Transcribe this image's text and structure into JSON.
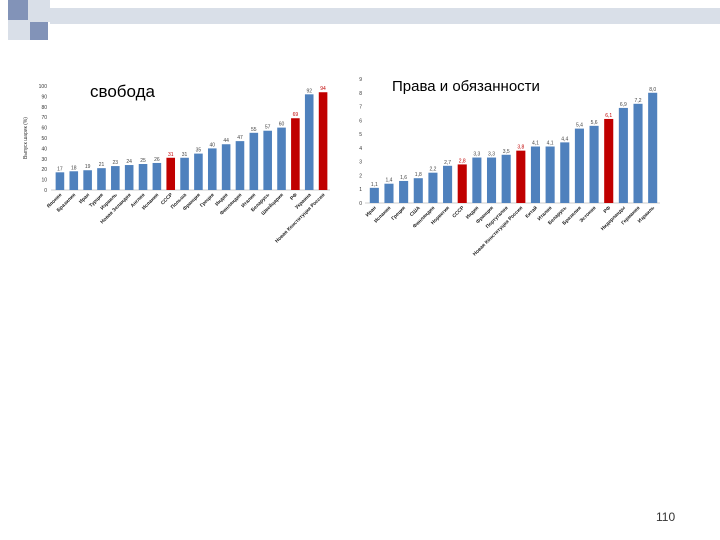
{
  "slide": {
    "page_number": "110",
    "colors": {
      "bar": "#4f81bd",
      "highlight": "#c00000",
      "header_light": "#d9dfe8",
      "header_dark": "#8293b8"
    }
  },
  "chart_data": [
    {
      "type": "bar",
      "title": "свобода",
      "ylabel": "Выпуск шарик (%)",
      "ylim": [
        0,
        100
      ],
      "yticks": [
        "0",
        "10",
        "20",
        "30",
        "40",
        "50",
        "60",
        "70",
        "80",
        "90",
        "100"
      ],
      "categories": [
        "Японие",
        "Бразилия",
        "Иран",
        "Турция",
        "Израиль",
        "Новая Зеландия",
        "Англия",
        "Испания",
        "СССР",
        "Польша",
        "Франция",
        "Греция",
        "Индия",
        "Финляндия",
        "Италия",
        "Беларусь",
        "Швейцария",
        "РФ",
        "Украина",
        "Новая Конституция России"
      ],
      "values": [
        17,
        18,
        19,
        21,
        23,
        24,
        25,
        26,
        31,
        31,
        35,
        40,
        44,
        47,
        55,
        57,
        60,
        69,
        92,
        94
      ],
      "value_labels": [
        "17",
        "18",
        "19",
        "21",
        "23",
        "24",
        "25",
        "26",
        "31",
        "31",
        "35",
        "40",
        "44",
        "47",
        "55",
        "57",
        "60",
        "69",
        "92",
        "94"
      ],
      "highlight": [
        8,
        17,
        19
      ]
    },
    {
      "type": "bar",
      "title": "Права и обязанности",
      "ylabel": "",
      "ylim": [
        0,
        9
      ],
      "yticks": [
        "0",
        "1",
        "2",
        "3",
        "4",
        "5",
        "6",
        "7",
        "8",
        "9"
      ],
      "categories": [
        "Иран",
        "Испания",
        "Греция",
        "США",
        "Финляндия",
        "Норвегия",
        "СССР",
        "Индия",
        "Франция",
        "Португалия",
        "Новая Конституция России",
        "Китай",
        "Италия",
        "Беларусь",
        "Бразилия",
        "Эстония",
        "РФ",
        "Нидерланды",
        "Германия",
        "Израиль"
      ],
      "values": [
        1.1,
        1.4,
        1.6,
        1.8,
        2.2,
        2.7,
        2.8,
        3.3,
        3.3,
        3.5,
        3.8,
        4.1,
        4.1,
        4.4,
        5.4,
        5.6,
        6.1,
        6.9,
        7.2,
        8.0
      ],
      "value_labels": [
        "1,1",
        "1,4",
        "1,6",
        "1,8",
        "2,2",
        "2,7",
        "2,8",
        "3,3",
        "3,3",
        "3,5",
        "3,8",
        "4,1",
        "4,1",
        "4,4",
        "5,4",
        "5,6",
        "6,1",
        "6,9",
        "7,2",
        "8,0"
      ],
      "highlight": [
        6,
        10,
        16
      ]
    }
  ]
}
